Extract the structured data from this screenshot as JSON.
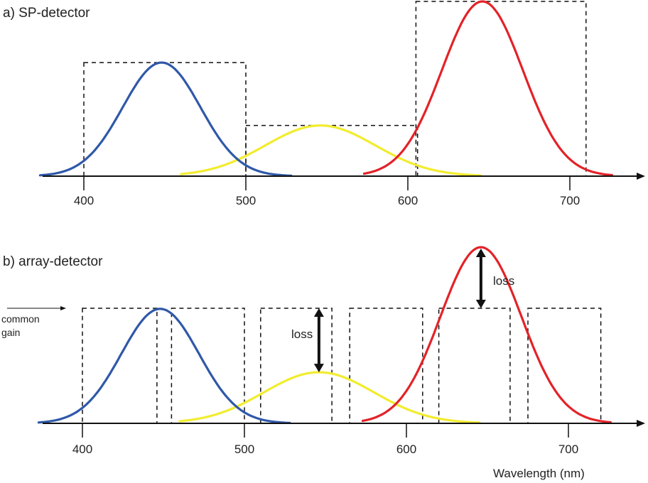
{
  "panels": {
    "sp": {
      "label": "a) SP-detector",
      "ticks": [
        "400",
        "500",
        "600",
        "700"
      ]
    },
    "array": {
      "label": "b) array-detector",
      "ticks": [
        "400",
        "500",
        "600",
        "700"
      ],
      "common_gain": [
        "common",
        "gain"
      ],
      "loss_label": "loss"
    }
  },
  "x_axis_title": "Wavelength (nm)",
  "colors": {
    "blue": "#2f58a8",
    "yellow": "#f2ec2e",
    "red": "#e32228",
    "axis": "#111111",
    "box": "#111111"
  },
  "curves": {
    "blue": {
      "center_nm": 448,
      "sigma_nm": 24
    },
    "yellow": {
      "center_nm": 546,
      "sigma_nm": 34
    },
    "red": {
      "center_nm": 646,
      "sigma_nm": 25
    }
  },
  "sp_peaks": {
    "blue": 0.65,
    "yellow": 0.29,
    "red": 1.0
  },
  "array_peaks": {
    "blue": 0.65,
    "yellow": 0.29,
    "red": 1.0
  }
}
